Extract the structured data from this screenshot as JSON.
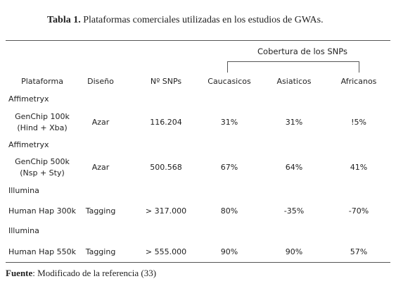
{
  "title": {
    "label": "Tabla 1.",
    "text": "Plataformas comerciales utilizadas en los estudios de GWAs."
  },
  "table": {
    "group_header": "Cobertura de los SNPs",
    "columns": [
      "Plataforma",
      "Diseño",
      "Nº SNPs",
      "Caucasicos",
      "Asiaticos",
      "Africanos"
    ],
    "rows": [
      {
        "group": "Affimetryx",
        "platform": [
          "GenChip 100k",
          "(Hind + Xba)"
        ],
        "cells": [
          "Azar",
          "116.204",
          "31%",
          "31%",
          "!5%"
        ]
      },
      {
        "group": "Affimetryx",
        "platform": [
          "GenChip 500k",
          "(Nsp + Sty)"
        ],
        "cells": [
          "Azar",
          "500.568",
          "67%",
          "64%",
          "41%"
        ]
      },
      {
        "group": "Illumina",
        "platform": [
          "Human Hap 300k"
        ],
        "cells": [
          "Tagging",
          "> 317.000",
          "80%",
          "-35%",
          "-70%"
        ]
      },
      {
        "group": "Illumina",
        "platform": [
          "Human Hap 550k"
        ],
        "cells": [
          "Tagging",
          "> 555.000",
          "90%",
          "90%",
          "57%"
        ]
      }
    ]
  },
  "footer": {
    "label": "Fuente",
    "text": ": Modificado de la referencia (33)"
  }
}
